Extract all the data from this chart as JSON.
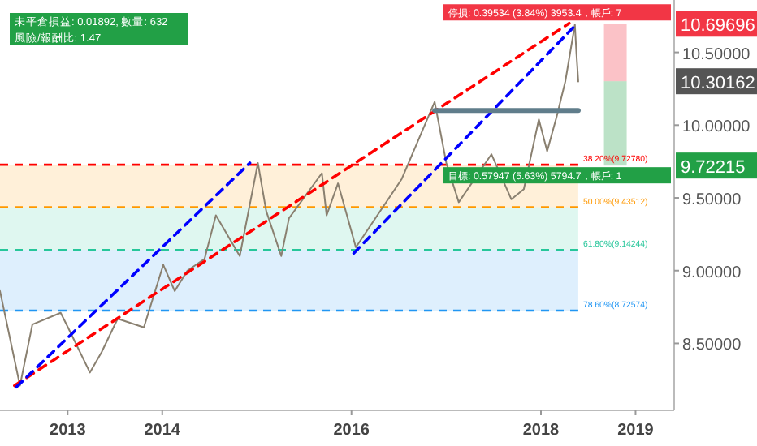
{
  "chart_data": {
    "type": "line",
    "xlim": [
      "2012-04-15",
      "2019-05-30"
    ],
    "ylim": [
      8.04,
      10.86
    ],
    "xticks": [
      {
        "value": "2013-01-01",
        "label": "2013"
      },
      {
        "value": "2014-01-01",
        "label": "2014"
      },
      {
        "value": "2016-01-01",
        "label": "2016"
      },
      {
        "value": "2018-01-01",
        "label": "2018"
      },
      {
        "value": "2019-01-01",
        "label": "2019"
      }
    ],
    "yticks": [
      {
        "value": 8.5,
        "label": "8.50000"
      },
      {
        "value": 9,
        "label": "9.00000"
      },
      {
        "value": 9.5,
        "label": "9.50000"
      },
      {
        "value": 10,
        "label": "10.00000"
      },
      {
        "value": 10.5,
        "label": "10.50000"
      }
    ],
    "series": [
      {
        "color": "#8a8070",
        "line_style": "solid",
        "x": [
          "2012-04-15",
          "2012-07-01",
          "2012-08-18",
          "2012-12-05",
          "2013-01-05",
          "2013-03-28",
          "2013-05-12",
          "2013-07-13",
          "2013-10-22",
          "2014-01-05",
          "2014-02-18",
          "2014-04-08",
          "2014-06-13",
          "2014-07-27",
          "2014-10-27",
          "2015-01-05",
          "2015-02-06",
          "2015-04-05",
          "2015-05-05",
          "2015-09-09",
          "2015-09-27",
          "2015-11-10",
          "2016-01-18",
          "2016-07-13",
          "2016-11-17",
          "2017-01-01",
          "2017-02-18",
          "2017-06-24",
          "2017-09-09",
          "2017-10-27",
          "2017-12-24",
          "2018-01-25",
          "2018-03-03",
          "2018-04-05",
          "2018-05-12",
          "2018-05-18",
          "2018-05-25"
        ],
        "values": [
          8.86,
          8.21,
          8.63,
          8.71,
          8.6,
          8.3,
          8.44,
          8.67,
          8.61,
          9.04,
          8.86,
          9.0,
          9.08,
          9.38,
          9.1,
          9.74,
          9.41,
          9.1,
          9.36,
          9.67,
          9.38,
          9.6,
          9.16,
          9.63,
          10.16,
          9.74,
          9.47,
          9.8,
          9.49,
          9.56,
          10.04,
          9.82,
          10.06,
          10.3,
          10.69,
          10.49,
          10.3
        ]
      },
      {
        "type": "bar",
        "color": "#f23645",
        "x": [
          "2018-10-15"
        ],
        "base": [
          10.30162
        ],
        "values": [
          0.39534
        ]
      },
      {
        "type": "bar",
        "color": "#22a046",
        "x": [
          "2018-10-15"
        ],
        "base": [
          9.72215
        ],
        "values": [
          0.57947
        ]
      },
      {
        "color": "#ff0000",
        "line_style": "dashed",
        "x": [
          "2012-06-10",
          "2018-04-20"
        ],
        "values": [
          8.21,
          10.7
        ]
      },
      {
        "color": "#0000ff",
        "line_style": "dashed",
        "x": [
          "2012-06-17",
          "2014-12-05"
        ],
        "values": [
          8.2,
          9.74
        ]
      },
      {
        "color": "#0000ff",
        "line_style": "dashed",
        "x": [
          "2016-01-10",
          "2018-05-05"
        ],
        "values": [
          9.12,
          10.67
        ]
      },
      {
        "color": "#607d8b",
        "line_style": "solid",
        "x": [
          "2016-11-17",
          "2018-05-25"
        ],
        "values": [
          10.1,
          10.1
        ]
      }
    ],
    "ref_lines": [
      {
        "axis": "y",
        "value": 9.7278,
        "label": "38.20%(9.72780)",
        "color": "#ff0000",
        "line_style": "dashed"
      },
      {
        "axis": "y",
        "value": 9.43512,
        "label": "50.00%(9.43512)",
        "color": "#ff9800",
        "line_style": "dashed"
      },
      {
        "axis": "y",
        "value": 9.14244,
        "label": "61.80%(9.14244)",
        "color": "#26c69a",
        "line_style": "dashed"
      },
      {
        "axis": "y",
        "value": 8.72574,
        "label": "78.60%(8.72574)",
        "color": "#2196f3",
        "line_style": "dashed"
      }
    ],
    "bands": [
      {
        "axis": "y",
        "from": 9.43512,
        "to": 9.7278,
        "color": "#ff9800"
      },
      {
        "axis": "y",
        "from": 9.14244,
        "to": 9.43512,
        "color": "#26c69a"
      },
      {
        "axis": "y",
        "from": 8.72574,
        "to": 9.14244,
        "color": "#2196f3"
      }
    ],
    "y2lim": [
      8.04,
      10.86
    ],
    "y2ticks": [
      {
        "value": 10.69696,
        "label": "10.69696"
      },
      {
        "value": 10.30162,
        "label": "10.30162"
      },
      {
        "value": 9.72215,
        "label": "9.72215"
      }
    ],
    "annotations": [
      {
        "text": "停損: 0.39534 (3.84%) 3953.4，帳戶: 7",
        "x": "2018-10-15",
        "y": 10.69696
      },
      {
        "text": "目標: 0.57947 (5.63%) 5794.7，帳戶: 1",
        "x": "2018-10-15",
        "y": 9.72215
      },
      "未平倉損益: 0.01892, 數量: 632",
      "風險/報酬比: 1.47"
    ]
  }
}
